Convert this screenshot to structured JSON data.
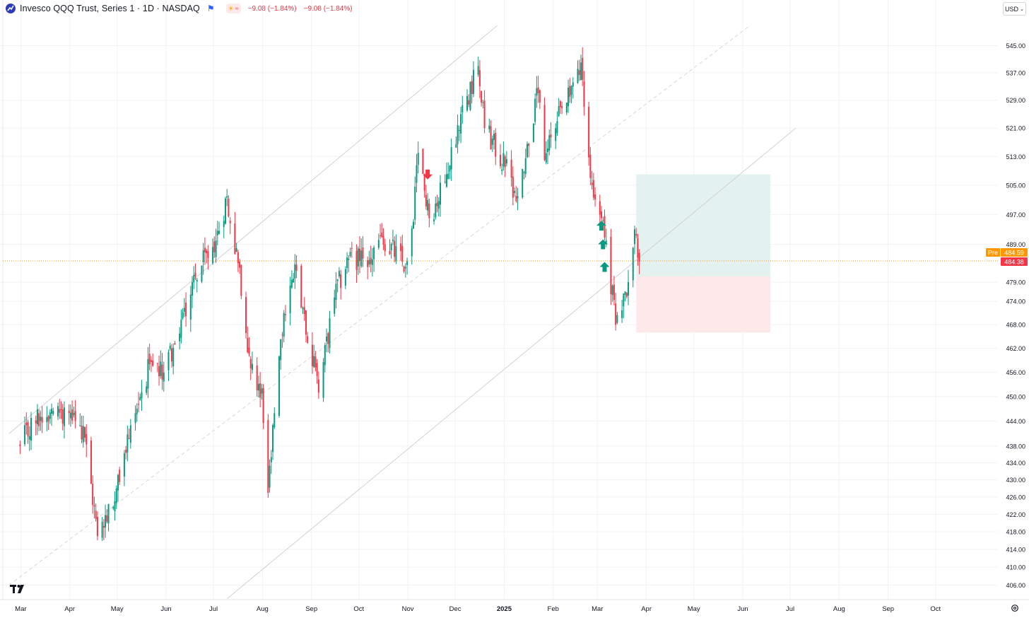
{
  "legend": {
    "symbol_title": "Invesco QQQ Trust, Series 1 · 1D · NASDAQ",
    "change_1": "−9.08 (−1.84%)",
    "change_2": "−9.08 (−1.84%)",
    "icons": [
      "qqq-logo-icon",
      "flag-icon",
      "sun-icon",
      "approx-icon"
    ]
  },
  "currency": {
    "label": "USD",
    "icon": "chevron-down-icon"
  },
  "price_labels": {
    "pre_tag": "Pre",
    "pre_price": "484.59",
    "last_price": "484.38"
  },
  "colors": {
    "up": "#089981",
    "down": "#f23645",
    "pre_tag": "#ff9800",
    "last_tag": "#f23645",
    "long_target": "#e3f2ee",
    "long_stop": "#fde8ea",
    "channel": "#d0d3da"
  },
  "chart_data": {
    "type": "candlestick",
    "symbol": "QQQ",
    "interval": "1D",
    "exchange": "NASDAQ",
    "x_tick_labels": [
      "Mar",
      "Apr",
      "May",
      "Jun",
      "Jul",
      "Aug",
      "Sep",
      "Oct",
      "Nov",
      "Dec",
      "2025",
      "Feb",
      "Mar",
      "Apr",
      "May",
      "Jun",
      "Jul",
      "Aug",
      "Sep",
      "Oct"
    ],
    "y_tick_labels": [
      "545.00",
      "537.00",
      "529.00",
      "521.00",
      "513.00",
      "505.00",
      "497.00",
      "489.00",
      "479.00",
      "474.00",
      "468.00",
      "462.00",
      "456.00",
      "450.00",
      "444.00",
      "438.00",
      "434.00",
      "430.00",
      "426.00",
      "422.00",
      "418.00",
      "414.00",
      "410.00",
      "406.00"
    ],
    "y_scale": "log",
    "y_range": [
      403,
      551
    ],
    "anchors": [
      {
        "date": "2024-03-01",
        "close": 438
      },
      {
        "date": "2024-03-10",
        "close": 444
      },
      {
        "date": "2024-03-21",
        "close": 447
      },
      {
        "date": "2024-04-01",
        "close": 446
      },
      {
        "date": "2024-04-11",
        "close": 440
      },
      {
        "date": "2024-04-19",
        "close": 417
      },
      {
        "date": "2024-04-30",
        "close": 425
      },
      {
        "date": "2024-05-10",
        "close": 443
      },
      {
        "date": "2024-05-22",
        "close": 458
      },
      {
        "date": "2024-05-28",
        "close": 455
      },
      {
        "date": "2024-06-07",
        "close": 463
      },
      {
        "date": "2024-06-18",
        "close": 479
      },
      {
        "date": "2024-07-03",
        "close": 490
      },
      {
        "date": "2024-07-10",
        "close": 502
      },
      {
        "date": "2024-07-17",
        "close": 484
      },
      {
        "date": "2024-07-25",
        "close": 457
      },
      {
        "date": "2024-08-01",
        "close": 452
      },
      {
        "date": "2024-08-05",
        "close": 427
      },
      {
        "date": "2024-08-15",
        "close": 471
      },
      {
        "date": "2024-08-23",
        "close": 482
      },
      {
        "date": "2024-09-06",
        "close": 451
      },
      {
        "date": "2024-09-16",
        "close": 475
      },
      {
        "date": "2024-09-26",
        "close": 487
      },
      {
        "date": "2024-10-07",
        "close": 483
      },
      {
        "date": "2024-10-16",
        "close": 491
      },
      {
        "date": "2024-10-31",
        "close": 483
      },
      {
        "date": "2024-11-05",
        "close": 495
      },
      {
        "date": "2024-11-08",
        "close": 514
      },
      {
        "date": "2024-11-15",
        "close": 496
      },
      {
        "date": "2024-11-25",
        "close": 506
      },
      {
        "date": "2024-12-05",
        "close": 525
      },
      {
        "date": "2024-12-16",
        "close": 539
      },
      {
        "date": "2024-12-20",
        "close": 521
      },
      {
        "date": "2025-01-02",
        "close": 510
      },
      {
        "date": "2025-01-10",
        "close": 502
      },
      {
        "date": "2025-01-23",
        "close": 531
      },
      {
        "date": "2025-01-27",
        "close": 512
      },
      {
        "date": "2025-02-04",
        "close": 523
      },
      {
        "date": "2025-02-12",
        "close": 530
      },
      {
        "date": "2025-02-19",
        "close": 540
      },
      {
        "date": "2025-02-25",
        "close": 507
      },
      {
        "date": "2025-03-03",
        "close": 497
      },
      {
        "date": "2025-03-07",
        "close": 490
      },
      {
        "date": "2025-03-13",
        "close": 468
      },
      {
        "date": "2025-03-18",
        "close": 476
      },
      {
        "date": "2025-03-21",
        "close": 479
      },
      {
        "date": "2025-03-25",
        "close": 493
      },
      {
        "date": "2025-03-28",
        "close": 484.38
      }
    ],
    "signals": [
      {
        "date": "2024-11-14",
        "type": "sell",
        "price": 508
      },
      {
        "date": "2025-03-04",
        "type": "buy",
        "price": 494
      },
      {
        "date": "2025-03-05",
        "type": "buy",
        "price": 489
      },
      {
        "date": "2025-03-06",
        "type": "buy",
        "price": 483
      }
    ],
    "channel_lines": [
      {
        "style": "solid",
        "from": {
          "date": "2024-02-23",
          "price": 441
        },
        "to": {
          "date": "2024-12-28",
          "price": 551
        }
      },
      {
        "style": "dashed",
        "from": {
          "date": "2024-02-23",
          "price": 406
        },
        "to": {
          "date": "2025-06-06",
          "price": 551
        }
      },
      {
        "style": "solid",
        "from": {
          "date": "2024-07-10",
          "price": 403
        },
        "to": {
          "date": "2025-07-05",
          "price": 521
        }
      }
    ],
    "position": {
      "type": "long",
      "start": "2025-03-26",
      "end": "2025-06-19",
      "entry": 480.5,
      "target": 508,
      "stop": 466
    },
    "pre_market_line": 484.59,
    "last_price": 484.38
  }
}
